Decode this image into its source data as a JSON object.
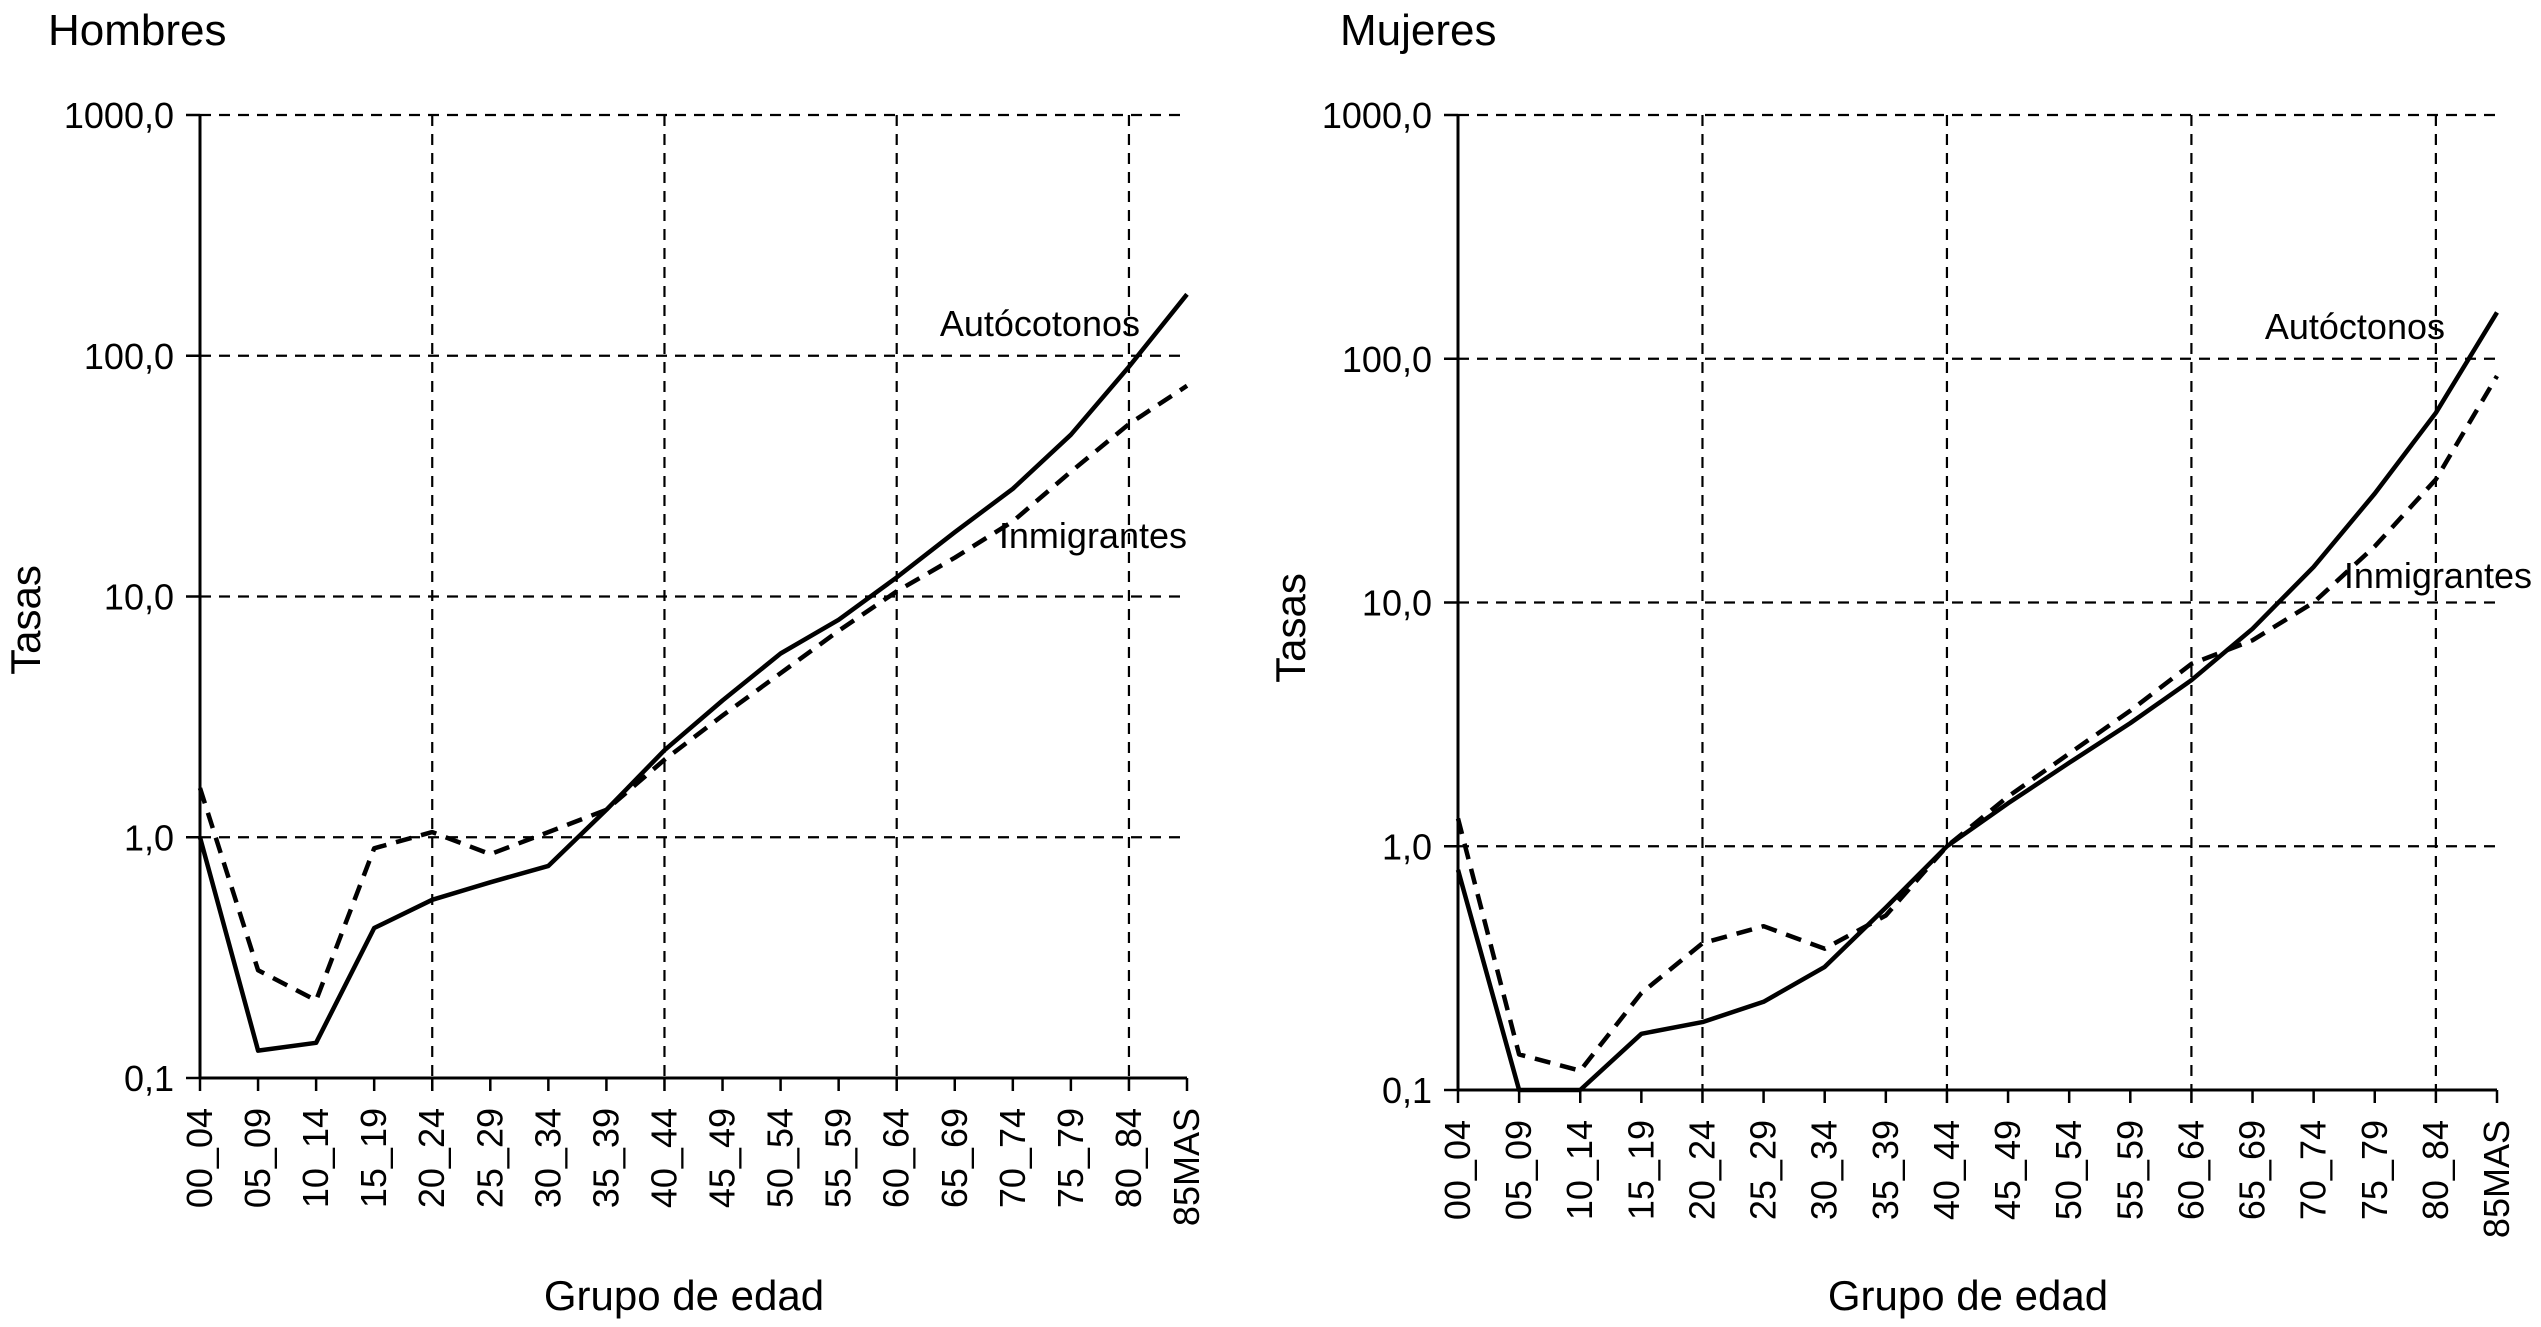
{
  "chart_data": [
    {
      "type": "line",
      "title": "Hombres",
      "xlabel": "Grupo de edad",
      "ylabel": "Tasas",
      "yscale": "log",
      "ylim": [
        0.1,
        1000
      ],
      "yticks": [
        "0,1",
        "1,0",
        "10,0",
        "100,0",
        "1000,0"
      ],
      "grid": "dashed",
      "categories": [
        "00_04",
        "05_09",
        "10_14",
        "15_19",
        "20_24",
        "25_29",
        "30_34",
        "35_39",
        "40_44",
        "45_49",
        "50_54",
        "55_59",
        "60_64",
        "65_69",
        "70_74",
        "75_79",
        "80_84",
        "85MAS"
      ],
      "series": [
        {
          "name": "Autócotonos",
          "style": "solid",
          "values": [
            1.0,
            0.13,
            0.14,
            0.42,
            0.55,
            0.65,
            0.76,
            1.3,
            2.3,
            3.7,
            5.8,
            8.0,
            12.0,
            18.5,
            28.0,
            47.0,
            90.0,
            180.0
          ]
        },
        {
          "name": "Inmigrantes",
          "style": "dashed",
          "values": [
            1.6,
            0.28,
            0.21,
            0.9,
            1.05,
            0.85,
            1.05,
            1.3,
            2.1,
            3.2,
            4.8,
            7.2,
            10.5,
            14.5,
            20.5,
            33.0,
            52.0,
            75.0
          ]
        }
      ]
    },
    {
      "type": "line",
      "title": "Mujeres",
      "xlabel": "Grupo de edad",
      "ylabel": "Tasas",
      "yscale": "log",
      "ylim": [
        0.1,
        1000
      ],
      "yticks": [
        "0,1",
        "1,0",
        "10,0",
        "100,0",
        "1000,0"
      ],
      "grid": "dashed",
      "categories": [
        "00_04",
        "05_09",
        "10_14",
        "15_19",
        "20_24",
        "25_29",
        "30_34",
        "35_39",
        "40_44",
        "45_49",
        "50_54",
        "55_59",
        "60_64",
        "65_69",
        "70_74",
        "75_79",
        "80_84",
        "85MAS"
      ],
      "series": [
        {
          "name": "Autóctonos",
          "style": "solid",
          "values": [
            0.8,
            0.1,
            0.1,
            0.17,
            0.19,
            0.23,
            0.32,
            0.56,
            1.0,
            1.5,
            2.2,
            3.2,
            4.8,
            7.8,
            14.0,
            28.0,
            60.0,
            155.0
          ]
        },
        {
          "name": "Inmigrantes",
          "style": "dashed",
          "values": [
            1.3,
            0.14,
            0.12,
            0.25,
            0.4,
            0.47,
            0.38,
            0.52,
            1.0,
            1.6,
            2.4,
            3.6,
            5.6,
            7.0,
            10.0,
            17.0,
            32.0,
            85.0
          ]
        }
      ]
    }
  ]
}
